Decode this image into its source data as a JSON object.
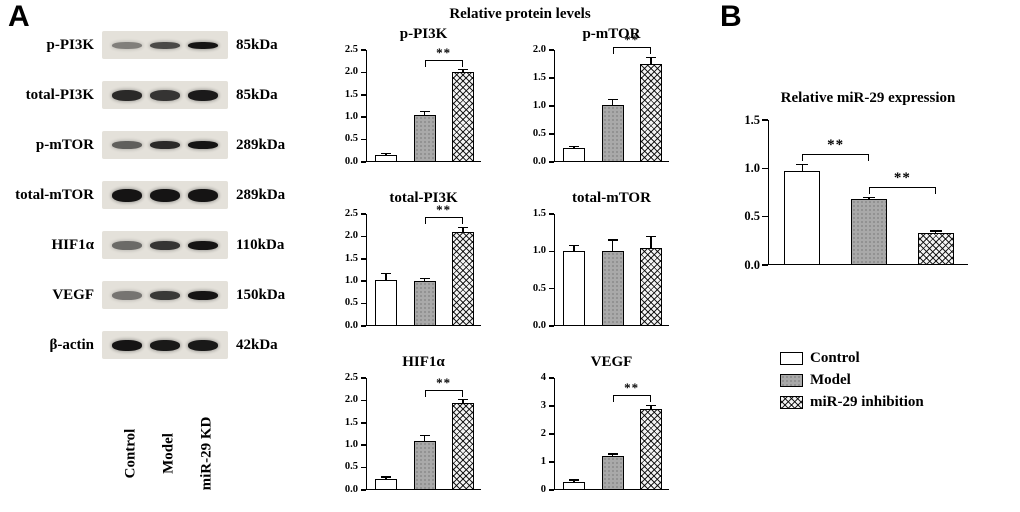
{
  "figure": {
    "panelA_label": "A",
    "panelB_label": "B",
    "charts_title": "Relative protein levels",
    "panelB_title": "Relative miR-29 expression"
  },
  "blots": {
    "lanes": [
      "Control",
      "Model",
      "miR-29 KD"
    ],
    "rows": [
      {
        "label": "p-PI3K",
        "kda": "85kDa",
        "bands": [
          0.45,
          0.7,
          0.95
        ],
        "band_h": 7
      },
      {
        "label": "total-PI3K",
        "kda": "85kDa",
        "bands": [
          0.85,
          0.8,
          0.92
        ],
        "band_h": 11
      },
      {
        "label": "p-mTOR",
        "kda": "289kDa",
        "bands": [
          0.6,
          0.85,
          0.95
        ],
        "band_h": 8
      },
      {
        "label": "total-mTOR",
        "kda": "289kDa",
        "bands": [
          0.95,
          0.95,
          0.95
        ],
        "band_h": 13
      },
      {
        "label": "HIF1α",
        "kda": "110kDa",
        "bands": [
          0.55,
          0.8,
          0.95
        ],
        "band_h": 9
      },
      {
        "label": "VEGF",
        "kda": "150kDa",
        "bands": [
          0.5,
          0.78,
          0.95
        ],
        "band_h": 9
      },
      {
        "label": "β-actin",
        "kda": "42kDa",
        "bands": [
          0.95,
          0.93,
          0.93
        ],
        "band_h": 11
      }
    ]
  },
  "chart_data": [
    {
      "type": "bar",
      "title": "p-PI3K",
      "categories": [
        "Control",
        "Model",
        "miR-29 inhibition"
      ],
      "values": [
        0.15,
        1.05,
        2.0
      ],
      "errors": [
        0.04,
        0.08,
        0.06
      ],
      "ylim": [
        0,
        2.5
      ],
      "yticks": [
        "0.0",
        "0.5",
        "1.0",
        "1.5",
        "2.0",
        "2.5"
      ],
      "significance": [
        {
          "from": 1,
          "to": 2,
          "label": "**"
        }
      ]
    },
    {
      "type": "bar",
      "title": "p-mTOR",
      "categories": [
        "Control",
        "Model",
        "miR-29 inhibition"
      ],
      "values": [
        0.25,
        1.02,
        1.75
      ],
      "errors": [
        0.03,
        0.1,
        0.12
      ],
      "ylim": [
        0,
        2.0
      ],
      "yticks": [
        "0.0",
        "0.5",
        "1.0",
        "1.5",
        "2.0"
      ],
      "significance": [
        {
          "from": 1,
          "to": 2,
          "label": "**"
        }
      ]
    },
    {
      "type": "bar",
      "title": "total-PI3K",
      "categories": [
        "Control",
        "Model",
        "miR-29 inhibition"
      ],
      "values": [
        1.02,
        1.0,
        2.1
      ],
      "errors": [
        0.15,
        0.06,
        0.1
      ],
      "ylim": [
        0,
        2.5
      ],
      "yticks": [
        "0.0",
        "0.5",
        "1.0",
        "1.5",
        "2.0",
        "2.5"
      ],
      "significance": [
        {
          "from": 1,
          "to": 2,
          "label": "**"
        }
      ]
    },
    {
      "type": "bar",
      "title": "total-mTOR",
      "categories": [
        "Control",
        "Model",
        "miR-29 inhibition"
      ],
      "values": [
        1.0,
        1.0,
        1.05
      ],
      "errors": [
        0.08,
        0.15,
        0.15
      ],
      "ylim": [
        0,
        1.5
      ],
      "yticks": [
        "0.0",
        "0.5",
        "1.0",
        "1.5"
      ],
      "significance": []
    },
    {
      "type": "bar",
      "title": "HIF1α",
      "categories": [
        "Control",
        "Model",
        "miR-29 inhibition"
      ],
      "values": [
        0.25,
        1.1,
        1.95
      ],
      "errors": [
        0.04,
        0.12,
        0.07
      ],
      "ylim": [
        0,
        2.5
      ],
      "yticks": [
        "0.0",
        "0.5",
        "1.0",
        "1.5",
        "2.0",
        "2.5"
      ],
      "significance": [
        {
          "from": 1,
          "to": 2,
          "label": "**"
        }
      ]
    },
    {
      "type": "bar",
      "title": "VEGF",
      "categories": [
        "Control",
        "Model",
        "miR-29 inhibition"
      ],
      "values": [
        0.3,
        1.2,
        2.9
      ],
      "errors": [
        0.05,
        0.08,
        0.12
      ],
      "ylim": [
        0,
        4
      ],
      "yticks": [
        "0",
        "1",
        "2",
        "3",
        "4"
      ],
      "significance": [
        {
          "from": 1,
          "to": 2,
          "label": "**"
        }
      ]
    },
    {
      "type": "bar",
      "title": "Relative miR-29 expression",
      "categories": [
        "Control",
        "Model",
        "miR-29 inhibition"
      ],
      "values": [
        0.97,
        0.68,
        0.33
      ],
      "errors": [
        0.07,
        0.02,
        0.02
      ],
      "ylim": [
        0,
        1.5
      ],
      "yticks": [
        "0.0",
        "0.5",
        "1.0",
        "1.5"
      ],
      "significance": [
        {
          "from": 0,
          "to": 1,
          "label": "**"
        },
        {
          "from": 1,
          "to": 2,
          "label": "**"
        }
      ]
    }
  ],
  "legend": {
    "items": [
      {
        "label": "Control",
        "fill": "open"
      },
      {
        "label": "Model",
        "fill": "dots"
      },
      {
        "label": "miR-29 inhibition",
        "fill": "cross"
      }
    ]
  },
  "colors": {
    "text": "#000000",
    "background": "#ffffff",
    "bar_open": "#ffffff",
    "bar_model_gray": "#a9a9a9",
    "blot_background": "#e4e1da"
  }
}
